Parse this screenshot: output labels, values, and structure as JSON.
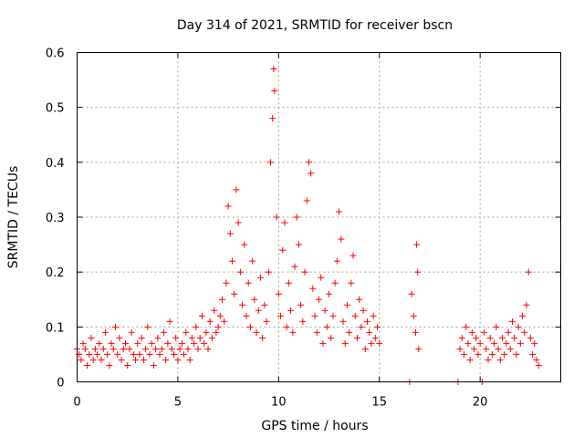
{
  "chart_data": {
    "type": "scatter",
    "title": "Day 314 of 2021, SRMTID for receiver bscn",
    "xlabel": "GPS time / hours",
    "ylabel": "SRMTID / TECUs",
    "xlim": [
      0,
      24
    ],
    "ylim": [
      0,
      0.6
    ],
    "xticks": [
      0,
      5,
      10,
      15,
      20
    ],
    "yticks": [
      0,
      0.1,
      0.2,
      0.3,
      0.4,
      0.5,
      0.6
    ],
    "xtick_labels": [
      "0",
      "5",
      "10",
      "15",
      "20"
    ],
    "ytick_labels": [
      "0",
      "0.1",
      "0.2",
      "0.3",
      "0.4",
      "0.5",
      "0.6"
    ],
    "grid": true,
    "marker": "+",
    "color": "#ff0000",
    "series": [
      {
        "name": "SRMTID",
        "points": [
          [
            0.0,
            0.06
          ],
          [
            0.1,
            0.05
          ],
          [
            0.2,
            0.04
          ],
          [
            0.3,
            0.07
          ],
          [
            0.4,
            0.06
          ],
          [
            0.5,
            0.03
          ],
          [
            0.6,
            0.05
          ],
          [
            0.7,
            0.08
          ],
          [
            0.8,
            0.04
          ],
          [
            0.9,
            0.06
          ],
          [
            1.0,
            0.05
          ],
          [
            1.1,
            0.07
          ],
          [
            1.2,
            0.04
          ],
          [
            1.3,
            0.06
          ],
          [
            1.4,
            0.09
          ],
          [
            1.5,
            0.05
          ],
          [
            1.6,
            0.03
          ],
          [
            1.7,
            0.07
          ],
          [
            1.8,
            0.06
          ],
          [
            1.9,
            0.1
          ],
          [
            2.0,
            0.05
          ],
          [
            2.1,
            0.08
          ],
          [
            2.2,
            0.04
          ],
          [
            2.3,
            0.06
          ],
          [
            2.4,
            0.07
          ],
          [
            2.5,
            0.03
          ],
          [
            2.6,
            0.06
          ],
          [
            2.7,
            0.09
          ],
          [
            2.8,
            0.05
          ],
          [
            2.9,
            0.04
          ],
          [
            3.0,
            0.07
          ],
          [
            3.1,
            0.05
          ],
          [
            3.2,
            0.08
          ],
          [
            3.3,
            0.04
          ],
          [
            3.4,
            0.06
          ],
          [
            3.5,
            0.1
          ],
          [
            3.6,
            0.05
          ],
          [
            3.7,
            0.07
          ],
          [
            3.8,
            0.03
          ],
          [
            3.9,
            0.06
          ],
          [
            4.0,
            0.08
          ],
          [
            4.1,
            0.05
          ],
          [
            4.2,
            0.06
          ],
          [
            4.3,
            0.09
          ],
          [
            4.4,
            0.04
          ],
          [
            4.5,
            0.07
          ],
          [
            4.6,
            0.11
          ],
          [
            4.7,
            0.06
          ],
          [
            4.8,
            0.05
          ],
          [
            4.9,
            0.08
          ],
          [
            5.0,
            0.04
          ],
          [
            5.1,
            0.06
          ],
          [
            5.2,
            0.07
          ],
          [
            5.3,
            0.05
          ],
          [
            5.4,
            0.09
          ],
          [
            5.5,
            0.06
          ],
          [
            5.6,
            0.04
          ],
          [
            5.7,
            0.08
          ],
          [
            5.8,
            0.07
          ],
          [
            5.9,
            0.1
          ],
          [
            6.0,
            0.06
          ],
          [
            6.1,
            0.08
          ],
          [
            6.2,
            0.12
          ],
          [
            6.3,
            0.07
          ],
          [
            6.4,
            0.09
          ],
          [
            6.5,
            0.06
          ],
          [
            6.6,
            0.11
          ],
          [
            6.7,
            0.08
          ],
          [
            6.8,
            0.13
          ],
          [
            6.9,
            0.09
          ],
          [
            7.0,
            0.1
          ],
          [
            7.1,
            0.12
          ],
          [
            7.2,
            0.15
          ],
          [
            7.3,
            0.11
          ],
          [
            7.4,
            0.18
          ],
          [
            7.5,
            0.32
          ],
          [
            7.6,
            0.27
          ],
          [
            7.7,
            0.22
          ],
          [
            7.8,
            0.16
          ],
          [
            7.9,
            0.35
          ],
          [
            8.0,
            0.29
          ],
          [
            8.1,
            0.2
          ],
          [
            8.2,
            0.14
          ],
          [
            8.3,
            0.25
          ],
          [
            8.4,
            0.12
          ],
          [
            8.5,
            0.18
          ],
          [
            8.6,
            0.1
          ],
          [
            8.7,
            0.22
          ],
          [
            8.8,
            0.15
          ],
          [
            8.9,
            0.09
          ],
          [
            9.0,
            0.13
          ],
          [
            9.1,
            0.19
          ],
          [
            9.2,
            0.08
          ],
          [
            9.3,
            0.14
          ],
          [
            9.4,
            0.11
          ],
          [
            9.5,
            0.2
          ],
          [
            9.6,
            0.4
          ],
          [
            9.7,
            0.48
          ],
          [
            9.75,
            0.57
          ],
          [
            9.8,
            0.53
          ],
          [
            9.9,
            0.3
          ],
          [
            10.0,
            0.16
          ],
          [
            10.1,
            0.12
          ],
          [
            10.2,
            0.24
          ],
          [
            10.3,
            0.29
          ],
          [
            10.4,
            0.1
          ],
          [
            10.5,
            0.18
          ],
          [
            10.6,
            0.13
          ],
          [
            10.7,
            0.09
          ],
          [
            10.8,
            0.21
          ],
          [
            10.9,
            0.3
          ],
          [
            11.0,
            0.25
          ],
          [
            11.1,
            0.14
          ],
          [
            11.2,
            0.11
          ],
          [
            11.3,
            0.2
          ],
          [
            11.4,
            0.33
          ],
          [
            11.5,
            0.4
          ],
          [
            11.6,
            0.38
          ],
          [
            11.7,
            0.17
          ],
          [
            11.8,
            0.12
          ],
          [
            11.9,
            0.09
          ],
          [
            12.0,
            0.15
          ],
          [
            12.1,
            0.19
          ],
          [
            12.2,
            0.07
          ],
          [
            12.3,
            0.13
          ],
          [
            12.4,
            0.1
          ],
          [
            12.5,
            0.16
          ],
          [
            12.6,
            0.08
          ],
          [
            12.7,
            0.12
          ],
          [
            12.8,
            0.18
          ],
          [
            12.9,
            0.22
          ],
          [
            13.0,
            0.31
          ],
          [
            13.1,
            0.26
          ],
          [
            13.2,
            0.11
          ],
          [
            13.3,
            0.07
          ],
          [
            13.4,
            0.14
          ],
          [
            13.5,
            0.09
          ],
          [
            13.6,
            0.18
          ],
          [
            13.7,
            0.23
          ],
          [
            13.8,
            0.12
          ],
          [
            13.9,
            0.08
          ],
          [
            14.0,
            0.15
          ],
          [
            14.1,
            0.1
          ],
          [
            14.2,
            0.13
          ],
          [
            14.3,
            0.06
          ],
          [
            14.4,
            0.11
          ],
          [
            14.5,
            0.09
          ],
          [
            14.6,
            0.07
          ],
          [
            14.7,
            0.12
          ],
          [
            14.8,
            0.08
          ],
          [
            14.9,
            0.1
          ],
          [
            15.0,
            0.07
          ],
          [
            16.5,
            0.0
          ],
          [
            16.6,
            0.16
          ],
          [
            16.7,
            0.12
          ],
          [
            16.8,
            0.09
          ],
          [
            16.85,
            0.25
          ],
          [
            16.9,
            0.2
          ],
          [
            16.95,
            0.06
          ],
          [
            18.9,
            0.0
          ],
          [
            19.0,
            0.06
          ],
          [
            19.1,
            0.08
          ],
          [
            19.2,
            0.05
          ],
          [
            19.3,
            0.1
          ],
          [
            19.4,
            0.07
          ],
          [
            19.5,
            0.04
          ],
          [
            19.6,
            0.09
          ],
          [
            19.7,
            0.06
          ],
          [
            19.8,
            0.08
          ],
          [
            19.9,
            0.05
          ],
          [
            20.0,
            0.07
          ],
          [
            20.1,
            0.0
          ],
          [
            20.2,
            0.09
          ],
          [
            20.3,
            0.06
          ],
          [
            20.4,
            0.04
          ],
          [
            20.5,
            0.08
          ],
          [
            20.6,
            0.05
          ],
          [
            20.7,
            0.07
          ],
          [
            20.8,
            0.1
          ],
          [
            20.9,
            0.06
          ],
          [
            21.0,
            0.04
          ],
          [
            21.1,
            0.08
          ],
          [
            21.2,
            0.05
          ],
          [
            21.3,
            0.07
          ],
          [
            21.4,
            0.09
          ],
          [
            21.5,
            0.06
          ],
          [
            21.6,
            0.11
          ],
          [
            21.7,
            0.08
          ],
          [
            21.8,
            0.05
          ],
          [
            21.9,
            0.1
          ],
          [
            22.0,
            0.07
          ],
          [
            22.1,
            0.12
          ],
          [
            22.2,
            0.09
          ],
          [
            22.3,
            0.14
          ],
          [
            22.4,
            0.2
          ],
          [
            22.5,
            0.08
          ],
          [
            22.6,
            0.05
          ],
          [
            22.7,
            0.07
          ],
          [
            22.8,
            0.04
          ],
          [
            22.9,
            0.03
          ]
        ]
      }
    ]
  }
}
